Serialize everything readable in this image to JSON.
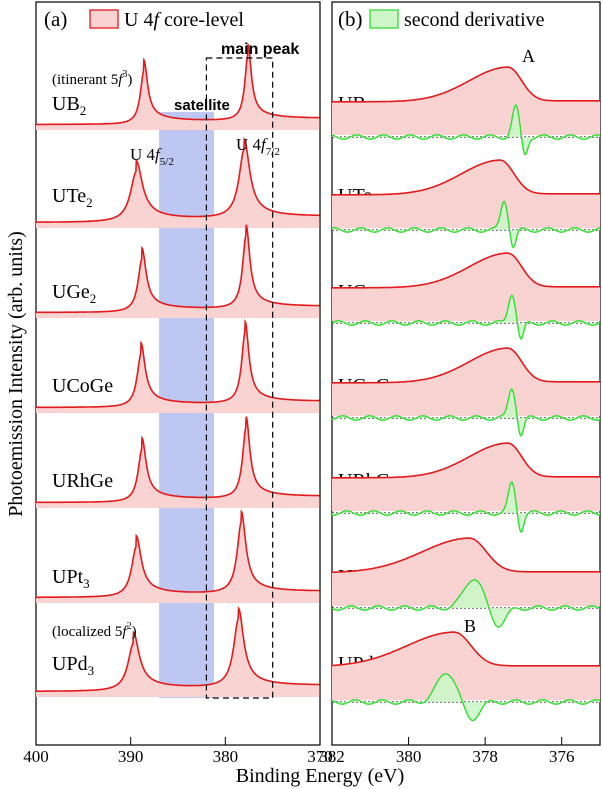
{
  "chart_data": [
    {
      "panel": "(a)",
      "type": "line",
      "legend": "U 4f core-level",
      "legend_color": "#e31a1c",
      "fill_color": "#f9d3d2",
      "xlabel": "Binding Energy (eV)",
      "ylabel": "Photoemission Intensity (arb. units)",
      "xlim": [
        400,
        370
      ],
      "x_reversed": true,
      "xticks": [
        400,
        390,
        380,
        370
      ],
      "satellite_band": [
        387.0,
        381.2
      ],
      "satellite_label": "satellite",
      "satellite_color": "#b3bdf0",
      "main_peak_box": [
        382.0,
        375.0
      ],
      "main_peak_label": "main peak",
      "peak_labels": {
        "p52": "U 4f5/2",
        "p72": "U 4f7/2"
      },
      "notes": {
        "top": "(itinerant 5f3)",
        "bottom": "(localized 5f2)"
      },
      "series": [
        {
          "name": "UB2",
          "p52": 388.6,
          "p72": 377.6,
          "amp52": 0.58,
          "amp72": 0.72,
          "width": 0.45
        },
        {
          "name": "UTe2",
          "p52": 389.4,
          "p72": 378.0,
          "amp52": 0.55,
          "amp72": 0.75,
          "width": 0.75
        },
        {
          "name": "UGe2",
          "p52": 388.8,
          "p72": 377.8,
          "amp52": 0.58,
          "amp72": 0.8,
          "width": 0.5
        },
        {
          "name": "UCoGe",
          "p52": 388.9,
          "p72": 377.9,
          "amp52": 0.58,
          "amp72": 0.78,
          "width": 0.5
        },
        {
          "name": "URhGe",
          "p52": 388.8,
          "p72": 377.8,
          "amp52": 0.58,
          "amp72": 0.78,
          "width": 0.5
        },
        {
          "name": "UPt3",
          "p52": 389.4,
          "p72": 378.3,
          "amp52": 0.55,
          "amp72": 0.78,
          "width": 0.6
        },
        {
          "name": "UPd3",
          "p52": 389.7,
          "p72": 378.6,
          "amp52": 0.52,
          "amp72": 0.75,
          "width": 0.7
        }
      ]
    },
    {
      "panel": "(b)",
      "type": "line",
      "legend": "second derivative",
      "legend_color": "#33dd33",
      "fill_color": "#cdf5c8",
      "xlabel": "Binding Energy (eV)",
      "xlim": [
        382,
        375
      ],
      "x_reversed": true,
      "xticks": [
        382,
        380,
        378,
        376
      ],
      "annotations": {
        "A": "A",
        "B": "B"
      },
      "series": [
        {
          "name": "UB2",
          "peak": 377.4,
          "deriv": 377.2
        },
        {
          "name": "UTe2",
          "peak": 377.6,
          "deriv": 377.5
        },
        {
          "name": "UGe2",
          "peak": 377.4,
          "deriv": 377.3
        },
        {
          "name": "UCoGe",
          "peak": 377.4,
          "deriv": 377.3
        },
        {
          "name": "URhGe",
          "peak": 377.4,
          "deriv": 377.3
        },
        {
          "name": "UPt3",
          "peak": 378.4,
          "deriv": 378.3
        },
        {
          "name": "UPd3",
          "peak": 378.8,
          "deriv": 379.0
        }
      ]
    }
  ],
  "labels": {
    "panel_a": "(a)",
    "panel_b": "(b)",
    "legend_a": "U 4",
    "legend_a_italic": "f",
    "legend_a_tail": " core-level",
    "legend_b": "second derivative",
    "satellite": "satellite",
    "main_peak": "main peak",
    "xlabel": "Binding Energy (eV)",
    "ylabel": "Photoemission Intensity (arb. units)",
    "A": "A",
    "B": "B"
  }
}
